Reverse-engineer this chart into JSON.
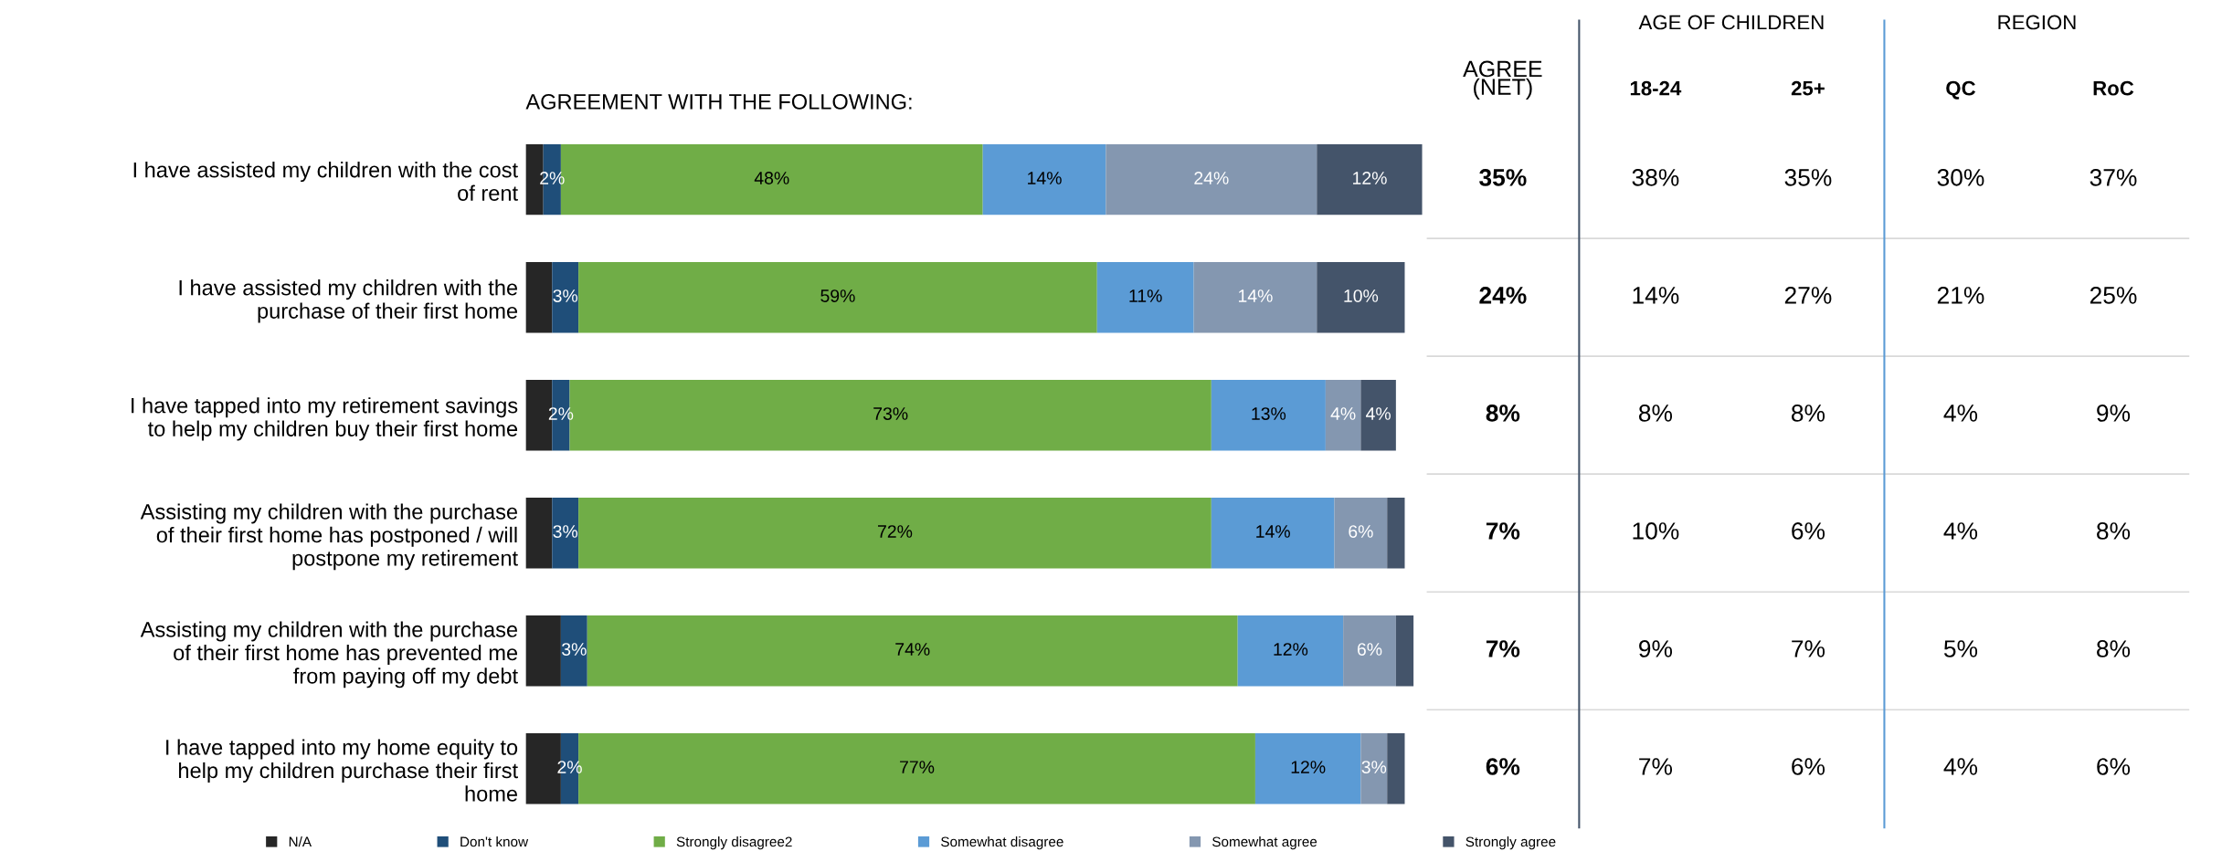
{
  "chart_data": [
    {
      "type": "bar",
      "orientation": "horizontal",
      "stacked": true,
      "title": "AGREEMENT WITH THE FOLLOWING:",
      "categories": [
        "I have assisted my children with the cost\nof rent",
        "I have assisted my children with the\npurchase of their first home",
        "I have tapped into my retirement savings\nto help my children buy their first home",
        "Assisting my children with the purchase\nof their first home has postponed / will\npostpone my retirement",
        "Assisting my children with the purchase\nof their first home has prevented me\nfrom paying off my debt",
        "I have tapped into my home equity to\nhelp my children purchase their first\nhome"
      ],
      "series": [
        {
          "name": "N/A",
          "color": "#262626",
          "values": [
            2,
            3,
            3,
            3,
            4,
            4
          ],
          "value_labels": [
            null,
            null,
            null,
            null,
            null,
            null
          ]
        },
        {
          "name": "Don't know",
          "color": "#1f4e79",
          "values": [
            2,
            3,
            2,
            3,
            3,
            2
          ],
          "value_labels": [
            "2%",
            "3%",
            "2%",
            "3%",
            "3%",
            "2%"
          ]
        },
        {
          "name": "Strongly disagree2",
          "color": "#70ad47",
          "values": [
            48,
            59,
            73,
            72,
            74,
            77
          ],
          "value_labels": [
            "48%",
            "59%",
            "73%",
            "72%",
            "74%",
            "77%"
          ]
        },
        {
          "name": "Somewhat disagree",
          "color": "#5b9bd5",
          "values": [
            14,
            11,
            13,
            14,
            12,
            12
          ],
          "value_labels": [
            "14%",
            "11%",
            "13%",
            "14%",
            "12%",
            "12%"
          ]
        },
        {
          "name": "Somewhat agree",
          "color": "#8497b0",
          "values": [
            24,
            14,
            4,
            6,
            6,
            3
          ],
          "value_labels": [
            "24%",
            "14%",
            "4%",
            "6%",
            "6%",
            "3%"
          ]
        },
        {
          "name": "Strongly agree",
          "color": "#44546a",
          "values": [
            12,
            10,
            4,
            2,
            2,
            2
          ],
          "value_labels": [
            "12%",
            "10%",
            "4%",
            null,
            null,
            null
          ]
        }
      ],
      "xlim": [
        0,
        102
      ],
      "tick_labels": "y",
      "legend": "bottom",
      "grid": false
    },
    {
      "type": "other",
      "categories": [
        "AGREE\n(NET)",
        "18-24",
        "25+",
        "QC",
        "RoC"
      ],
      "cell_labels": [
        [
          "35%",
          "38%",
          "35%",
          "30%",
          "37%"
        ],
        [
          "24%",
          "14%",
          "27%",
          "21%",
          "25%"
        ],
        [
          "8%",
          "8%",
          "8%",
          "4%",
          "9%"
        ],
        [
          "7%",
          "10%",
          "6%",
          "4%",
          "8%"
        ],
        [
          "7%",
          "9%",
          "7%",
          "5%",
          "8%"
        ],
        [
          "6%",
          "7%",
          "6%",
          "4%",
          "6%"
        ]
      ],
      "annotations": [
        "AGE OF CHILDREN",
        "REGION"
      ]
    }
  ]
}
